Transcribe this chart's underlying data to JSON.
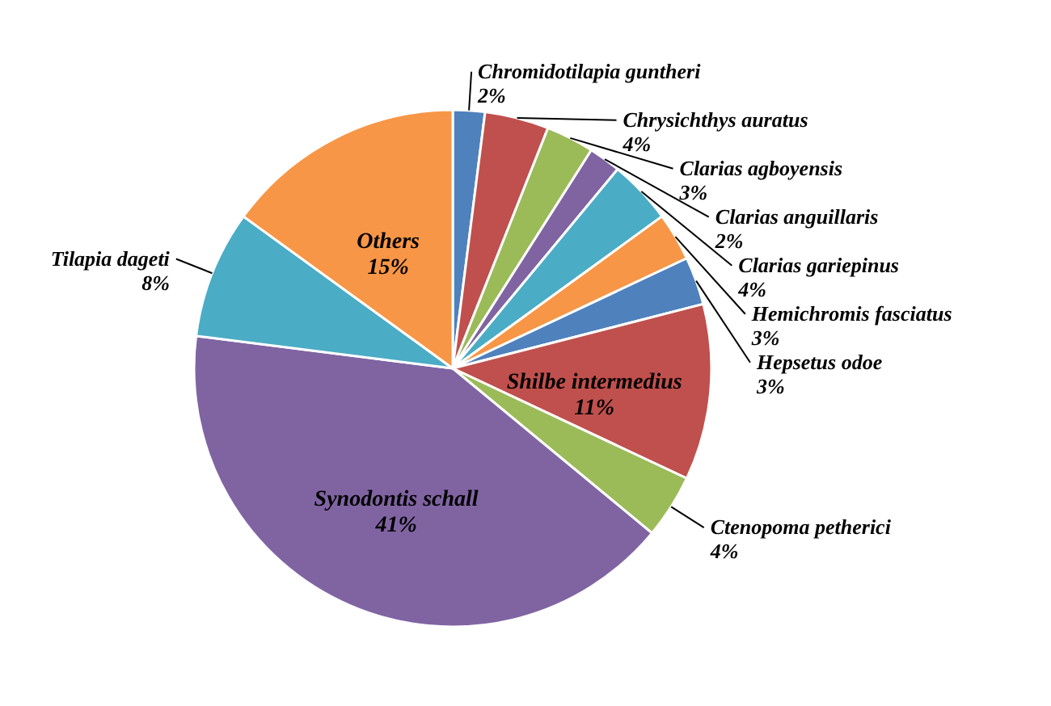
{
  "chart_data": {
    "type": "pie",
    "categories": [
      "Chromidotilapia guntheri",
      "Chrysichthys auratus",
      "Clarias agboyensis",
      "Clarias anguillaris",
      "Clarias gariepinus",
      "Hemichromis fasciatus",
      "Hepsetus odoe",
      "Shilbe intermedius",
      "Ctenopoma petherici",
      "Synodontis schall",
      "Tilapia dageti",
      "Others"
    ],
    "values": [
      2,
      4,
      3,
      2,
      4,
      3,
      3,
      11,
      4,
      41,
      8,
      15
    ],
    "value_labels": [
      "2%",
      "4%",
      "3%",
      "2%",
      "4%",
      "3%",
      "3%",
      "11%",
      "4%",
      "41%",
      "8%",
      "15%"
    ],
    "colors": [
      "#4f81bd",
      "#c0504d",
      "#9bbb59",
      "#8064a2",
      "#4bacc6",
      "#f79646",
      "#4f81bd",
      "#c0504d",
      "#9bbb59",
      "#8064a2",
      "#4bacc6",
      "#f79646"
    ]
  }
}
